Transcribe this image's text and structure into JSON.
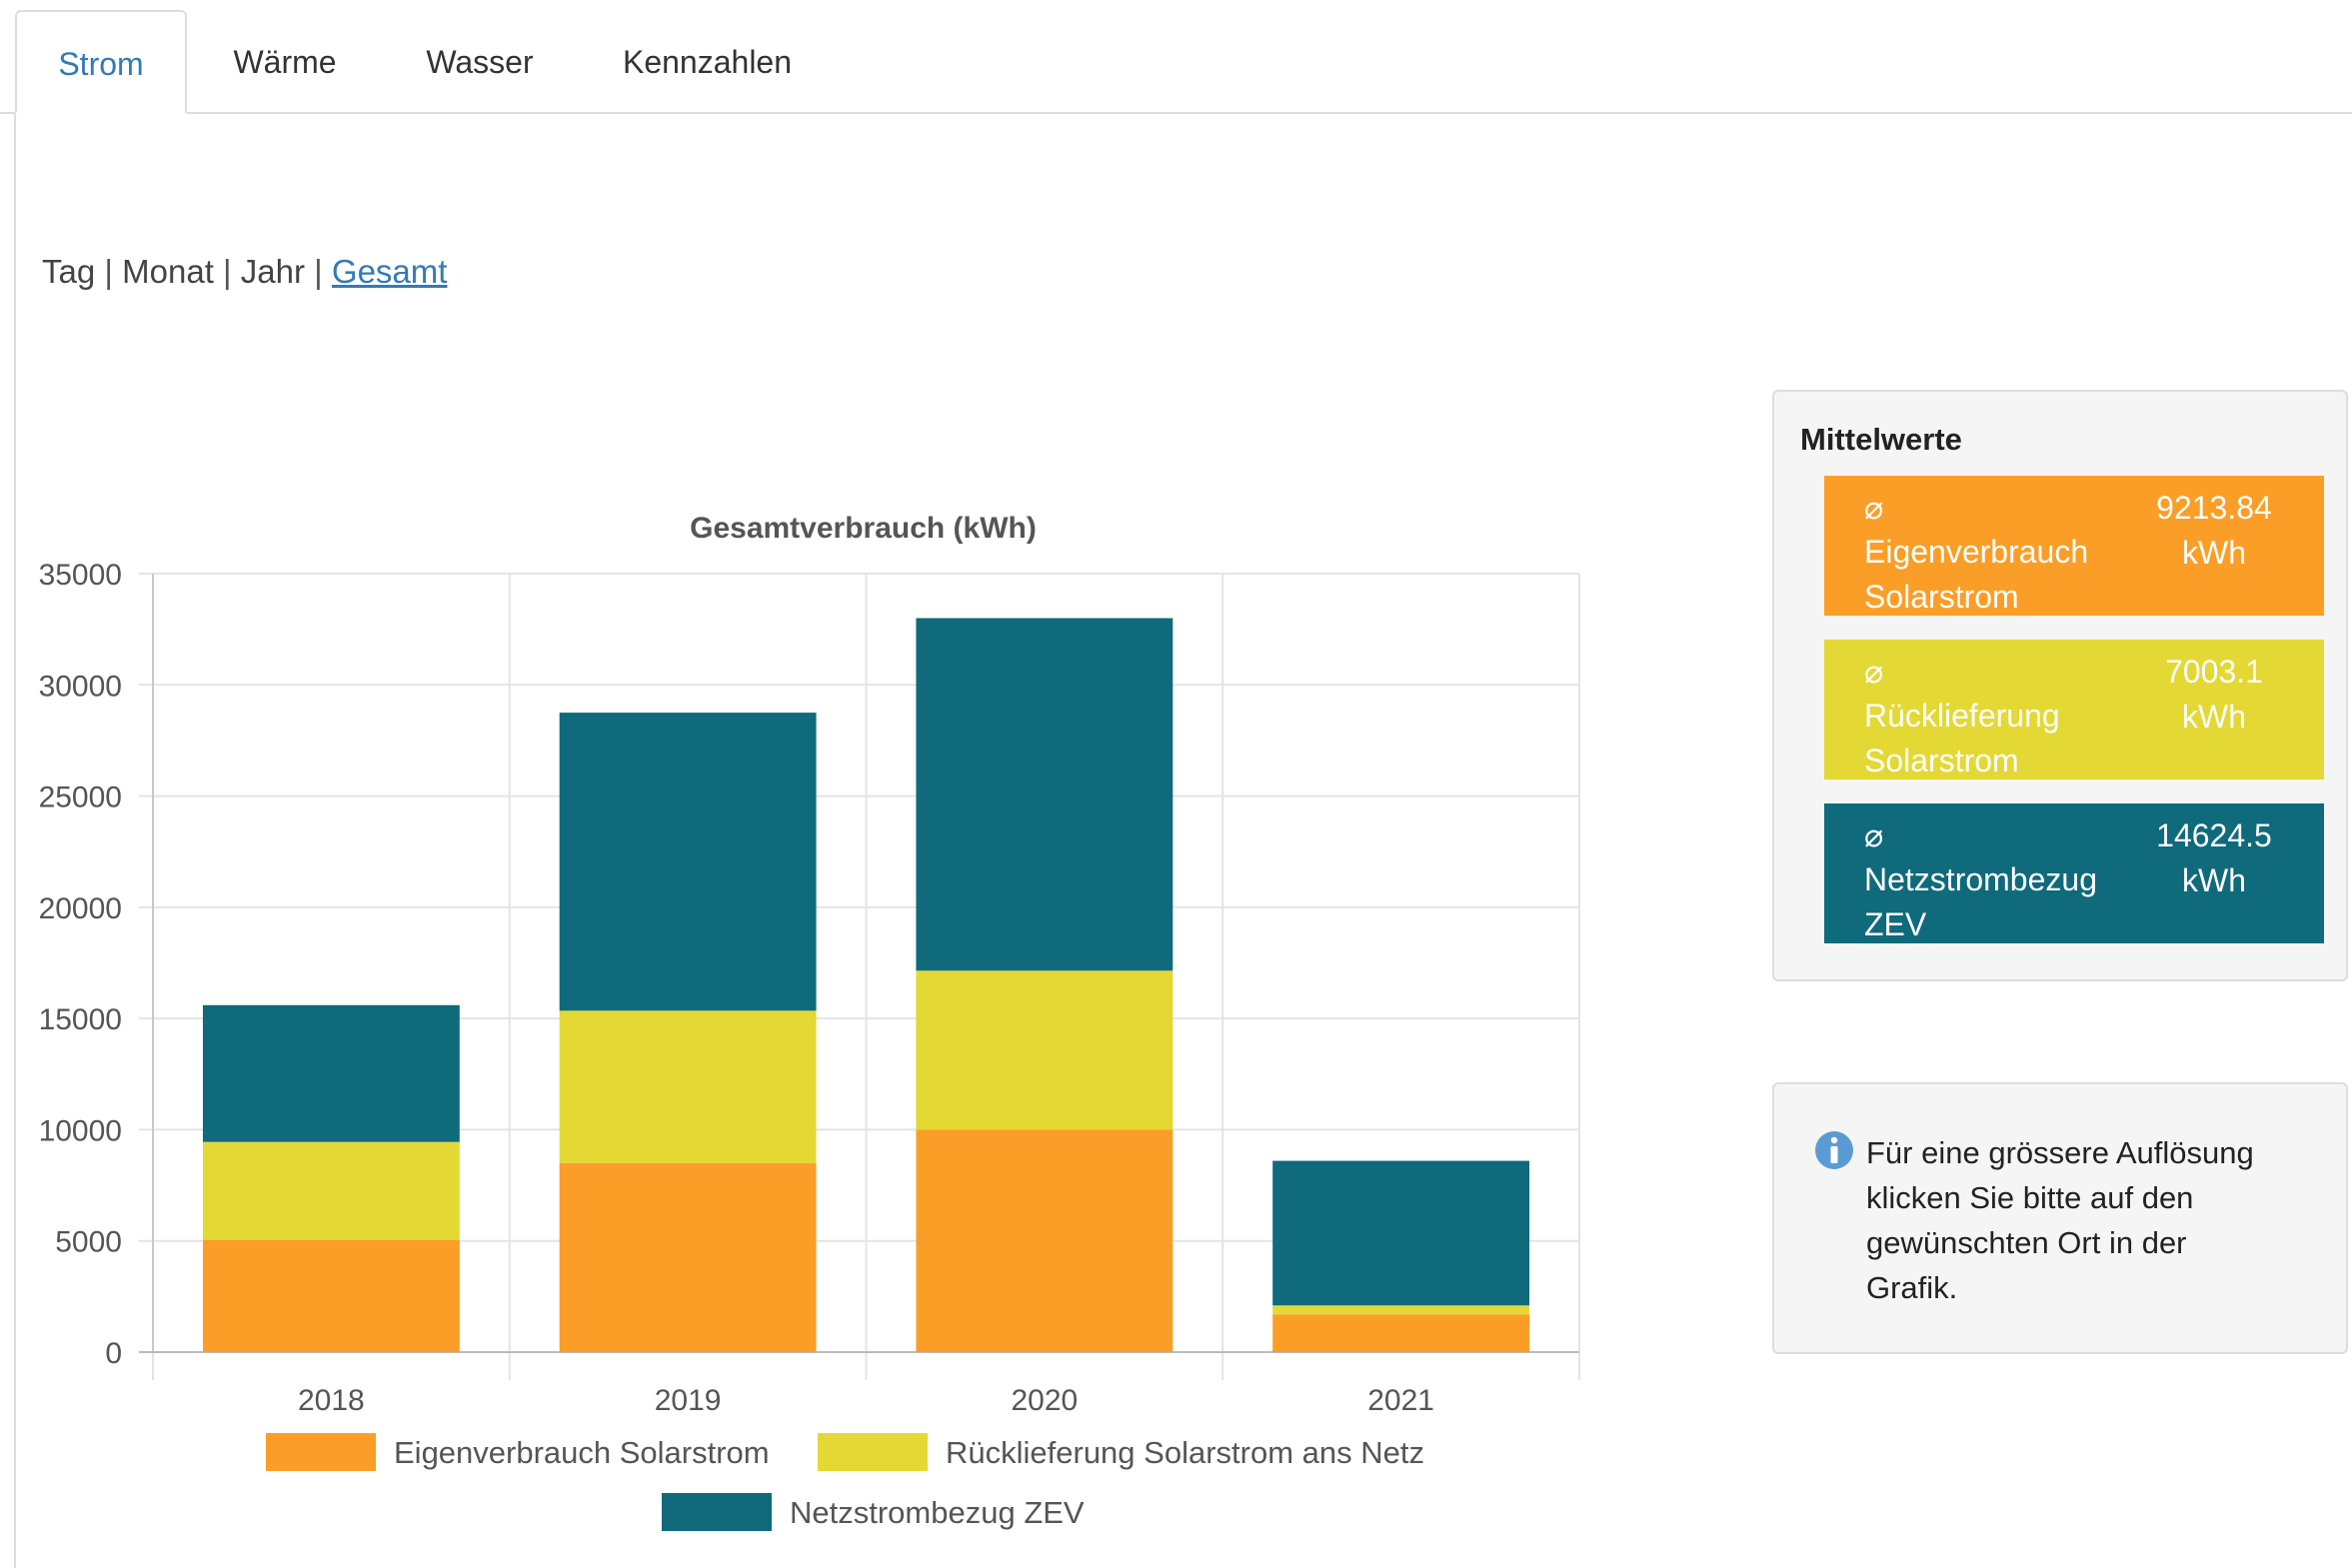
{
  "tabs": [
    {
      "label": "Strom",
      "active": true
    },
    {
      "label": "Wärme",
      "active": false
    },
    {
      "label": "Wasser",
      "active": false
    },
    {
      "label": "Kennzahlen",
      "active": false
    }
  ],
  "range": {
    "items": [
      "Tag",
      "Monat",
      "Jahr"
    ],
    "separator": "|",
    "active": "Gesamt"
  },
  "colors": {
    "eigenverbrauch": "#fb9e27",
    "ruecklieferung": "#e4d835",
    "netzstrom": "#0f6a7c",
    "link": "#337ab7",
    "info_icon": "#5b9bd5"
  },
  "chart_data": {
    "type": "bar",
    "stacked": true,
    "title": "Gesamtverbrauch (kWh)",
    "xlabel": "",
    "ylabel": "",
    "categories": [
      "2018",
      "2019",
      "2020",
      "2021"
    ],
    "ylim": [
      0,
      35000
    ],
    "yticks": [
      0,
      5000,
      10000,
      15000,
      20000,
      25000,
      30000,
      35000
    ],
    "grid": true,
    "legend_position": "bottom",
    "series": [
      {
        "name": "Eigenverbrauch Solarstrom",
        "color": "#fb9e27",
        "values": [
          5050,
          8500,
          10000,
          1700
        ]
      },
      {
        "name": "Rücklieferung Solarstrom ans Netz",
        "color": "#e4d835",
        "values": [
          4400,
          6850,
          7150,
          400
        ]
      },
      {
        "name": "Netzstrombezug ZEV",
        "color": "#0f6a7c",
        "values": [
          6150,
          13400,
          15850,
          6500
        ]
      }
    ]
  },
  "averages": {
    "title": "Mittelwerte",
    "symbol": "⌀",
    "items": [
      {
        "label": "Eigenverbrauch Solarstrom",
        "value": "9213.84",
        "unit": "kWh",
        "color": "#fb9e27"
      },
      {
        "label": "Rücklieferung Solarstrom",
        "value": "7003.1",
        "unit": "kWh",
        "color": "#e4d835"
      },
      {
        "label": "Netzstrombezug ZEV",
        "value": "14624.5",
        "unit": "kWh",
        "color": "#0f6a7c"
      }
    ]
  },
  "info": {
    "icon": "info-icon",
    "text": "Für eine grössere Auflösung klicken Sie bitte auf den gewünschten Ort in der Grafik."
  }
}
